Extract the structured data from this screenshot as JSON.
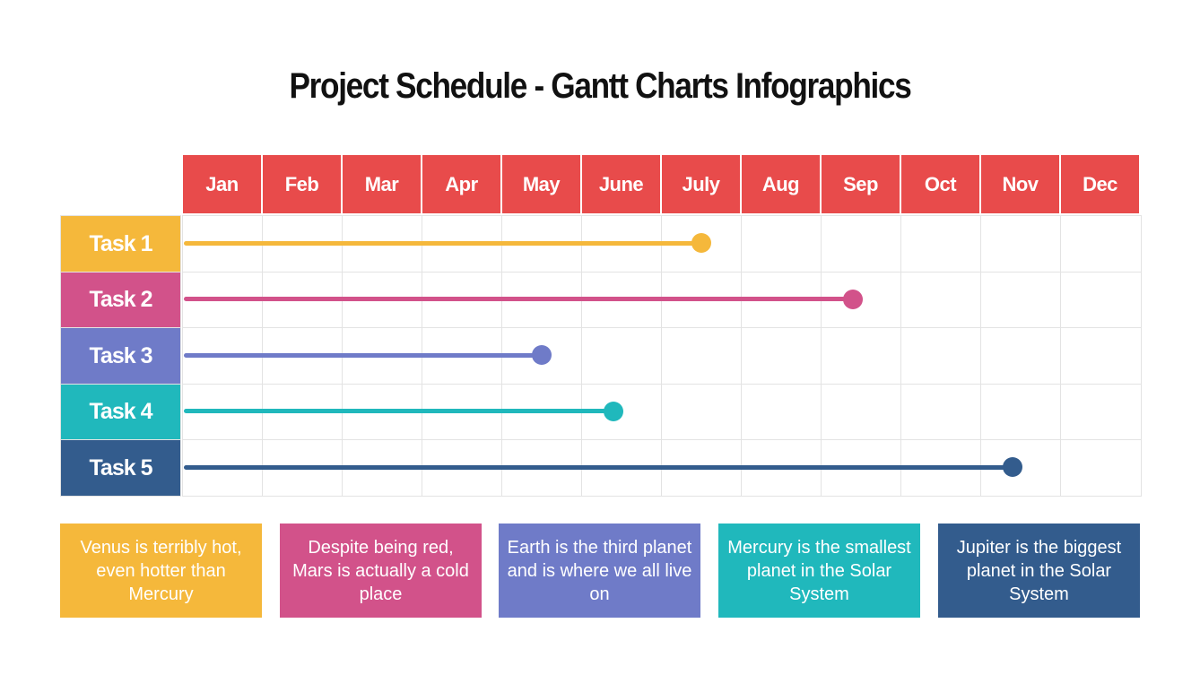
{
  "title": "Project Schedule - Gantt Charts Infographics",
  "header_color": "#E84B4B",
  "chart_data": {
    "type": "gantt",
    "title": "Project Schedule - Gantt Charts Infographics",
    "categories": [
      "Jan",
      "Feb",
      "Mar",
      "Apr",
      "May",
      "June",
      "July",
      "Aug",
      "Sep",
      "Oct",
      "Nov",
      "Dec"
    ],
    "x_unit": "months from start of Jan",
    "xlim": [
      0,
      12
    ],
    "grid": true,
    "series": [
      {
        "name": "Task 1",
        "start": 0,
        "end": 6.5,
        "color": "#F5B83B"
      },
      {
        "name": "Task 2",
        "start": 0,
        "end": 8.4,
        "color": "#D2528A"
      },
      {
        "name": "Task 3",
        "start": 0,
        "end": 4.5,
        "color": "#6F7BC8"
      },
      {
        "name": "Task 4",
        "start": 0,
        "end": 5.4,
        "color": "#20B8BC"
      },
      {
        "name": "Task 5",
        "start": 0,
        "end": 10.4,
        "color": "#335C8D"
      }
    ]
  },
  "notes": [
    {
      "text": "Venus is terribly hot, even hotter than Mercury",
      "color": "#F5B83B"
    },
    {
      "text": "Despite being red, Mars is actually a cold place",
      "color": "#D2528A"
    },
    {
      "text": "Earth is the third planet and is where we all live on",
      "color": "#6F7BC8"
    },
    {
      "text": "Mercury is the smallest planet in the Solar System",
      "color": "#20B8BC"
    },
    {
      "text": "Jupiter is the biggest planet in the Solar System",
      "color": "#335C8D"
    }
  ]
}
